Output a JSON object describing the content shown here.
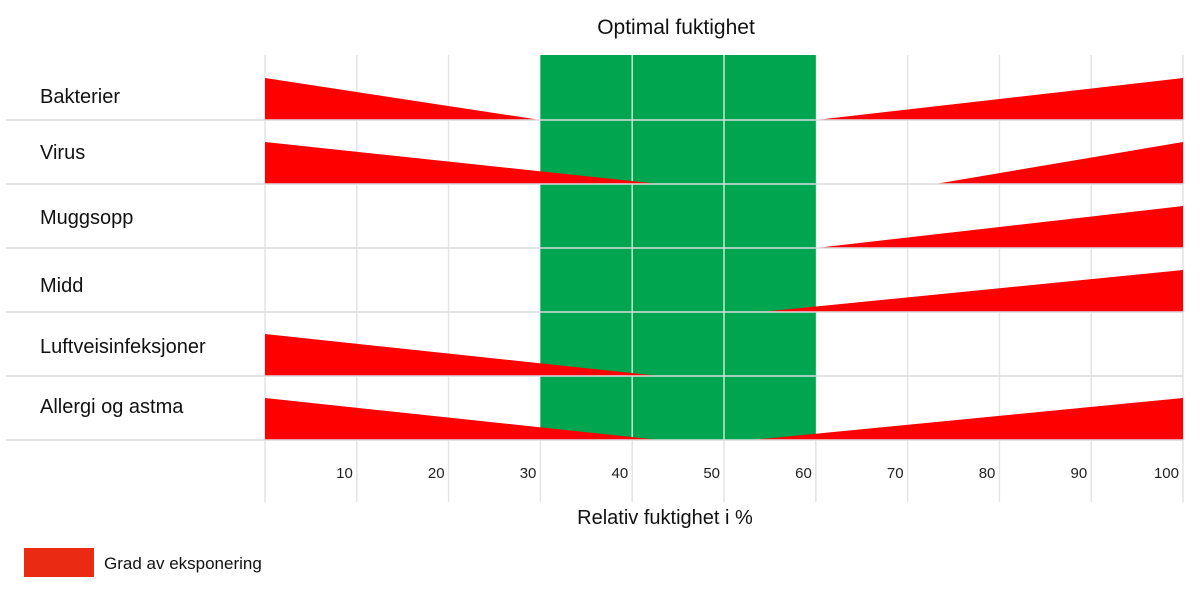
{
  "chart_data": {
    "type": "bar",
    "title": "Optimal fuktighet",
    "xlabel": "Relativ fuktighet i %",
    "ylabel": "",
    "xlim": [
      0,
      100
    ],
    "x_ticks": [
      10,
      20,
      30,
      40,
      50,
      60,
      70,
      80,
      90,
      100
    ],
    "optimal_range": [
      30,
      60
    ],
    "categories": [
      "Bakterier",
      "Virus",
      "Muggsopp",
      "Midd",
      "Luftveisinfeksjoner",
      "Allergi og astma"
    ],
    "exposure": [
      {
        "category": "Bakterier",
        "low_end": 30,
        "high_start": 60
      },
      {
        "category": "Virus",
        "low_end": 43,
        "high_start": 73
      },
      {
        "category": "Muggsopp",
        "low_end": null,
        "high_start": 60
      },
      {
        "category": "Midd",
        "low_end": null,
        "high_start": 54
      },
      {
        "category": "Luftveisinfeksjoner",
        "low_end": 43,
        "high_start": null
      },
      {
        "category": "Allergi og astma",
        "low_end": 43,
        "high_start": 53
      }
    ],
    "legend": {
      "label": "Grad av eksponering",
      "position": "bottom-left"
    },
    "colors": {
      "exposure": "#ff0000",
      "legend_swatch": "#ea2a12",
      "optimal": "#00a550"
    }
  }
}
